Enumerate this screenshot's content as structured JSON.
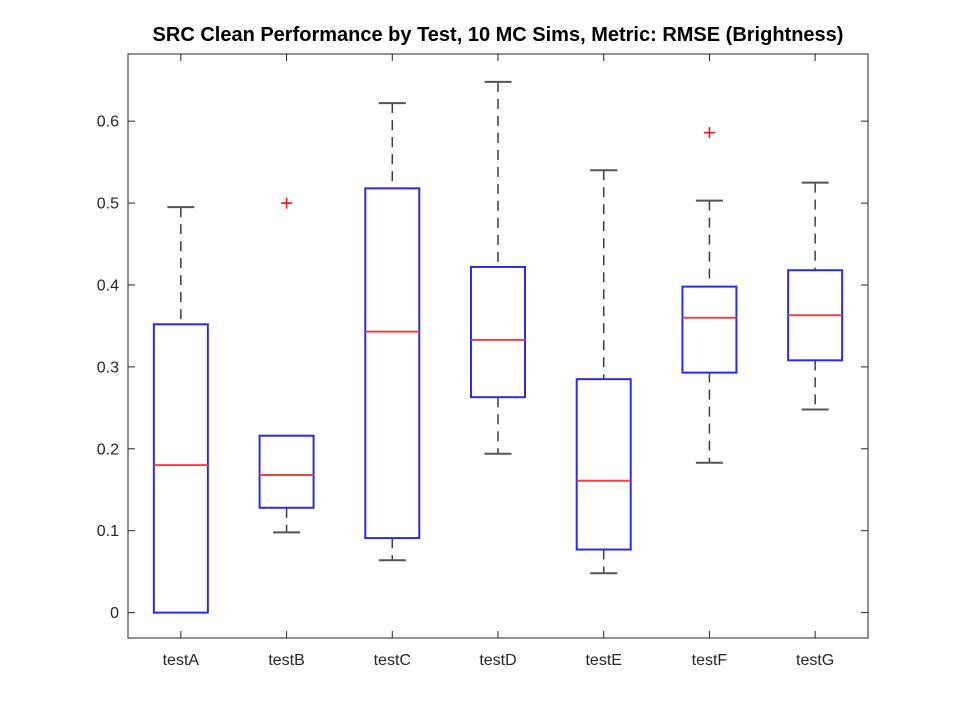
{
  "chart_data": {
    "type": "boxplot",
    "title": "SRC Clean Performance by Test, 10 MC Sims, Metric: RMSE (Brightness)",
    "categories": [
      "testA",
      "testB",
      "testC",
      "testD",
      "testE",
      "testF",
      "testG"
    ],
    "series": [
      {
        "name": "testA",
        "whisker_low": 0.0,
        "q1": 0.0,
        "median": 0.18,
        "q3": 0.352,
        "whisker_high": 0.495,
        "outliers": []
      },
      {
        "name": "testB",
        "whisker_low": 0.098,
        "q1": 0.128,
        "median": 0.168,
        "q3": 0.216,
        "whisker_high": 0.216,
        "outliers": [
          0.5
        ]
      },
      {
        "name": "testC",
        "whisker_low": 0.064,
        "q1": 0.091,
        "median": 0.343,
        "q3": 0.518,
        "whisker_high": 0.622,
        "outliers": []
      },
      {
        "name": "testD",
        "whisker_low": 0.194,
        "q1": 0.263,
        "median": 0.333,
        "q3": 0.422,
        "whisker_high": 0.648,
        "outliers": []
      },
      {
        "name": "testE",
        "whisker_low": 0.048,
        "q1": 0.077,
        "median": 0.161,
        "q3": 0.285,
        "whisker_high": 0.54,
        "outliers": []
      },
      {
        "name": "testF",
        "whisker_low": 0.183,
        "q1": 0.293,
        "median": 0.36,
        "q3": 0.398,
        "whisker_high": 0.503,
        "outliers": [
          0.586
        ]
      },
      {
        "name": "testG",
        "whisker_low": 0.248,
        "q1": 0.308,
        "median": 0.363,
        "q3": 0.418,
        "whisker_high": 0.525,
        "outliers": []
      }
    ],
    "xlabel": "",
    "ylabel": "",
    "ylim": [
      -0.031,
      0.682
    ],
    "ytick_values": [
      0,
      0.1,
      0.2,
      0.3,
      0.4,
      0.5,
      0.6
    ],
    "ytick_labels": [
      "0",
      "0.1",
      "0.2",
      "0.3",
      "0.4",
      "0.5",
      "0.6"
    ],
    "grid": false,
    "legend": "none",
    "colors": {
      "box": "#2b2bee",
      "median": "#ee4343",
      "whisker": "#3d3d3d",
      "cap": "#555555",
      "outlier": "#e32222",
      "axis": "#262626",
      "text": "#262626",
      "title": "#000000",
      "background": "#ffffff"
    }
  }
}
